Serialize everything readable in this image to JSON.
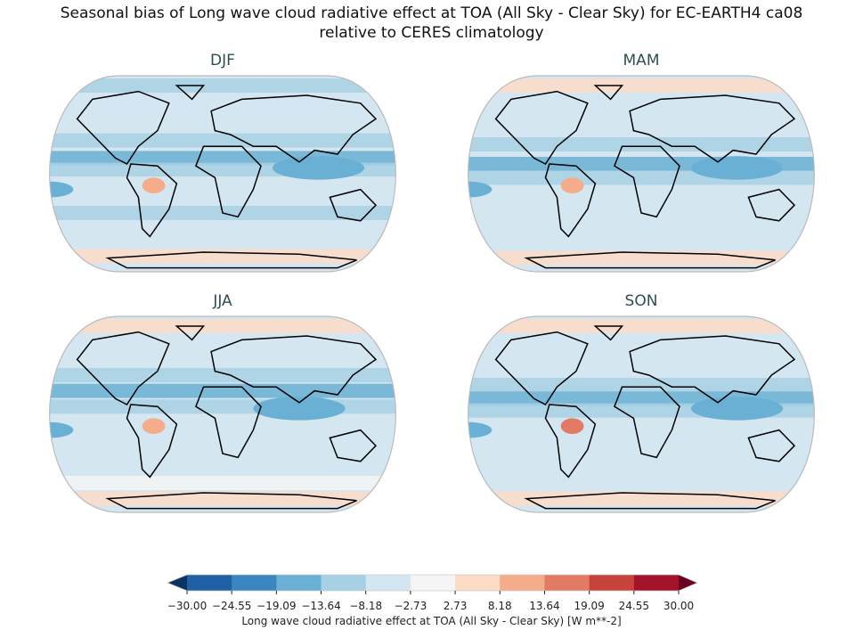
{
  "title_line1": "Seasonal bias of Long wave cloud radiative effect at TOA (All Sky - Clear Sky) for EC-EARTH4 ca08",
  "title_line2": "relative to CERES climatology",
  "panels": [
    {
      "label": "DJF"
    },
    {
      "label": "MAM"
    },
    {
      "label": "JJA"
    },
    {
      "label": "SON"
    }
  ],
  "colorbar": {
    "label": "Long wave cloud radiative effect at TOA (All Sky - Clear Sky) [W m**-2]",
    "ticks": [
      "−30.00",
      "−24.55",
      "−19.09",
      "−13.64",
      "−8.18",
      "−2.73",
      "2.73",
      "8.18",
      "13.64",
      "19.09",
      "24.55",
      "30.00"
    ],
    "colors": [
      "#2060a5",
      "#3a86c0",
      "#6aafd4",
      "#a7d0e4",
      "#d4e6f1",
      "#f5f5f5",
      "#fddbc7",
      "#f5ac8b",
      "#e27b64",
      "#c8423c",
      "#a3142a"
    ],
    "extend_low_color": "#0a3366",
    "extend_high_color": "#6b0020",
    "extend": "both"
  },
  "chart_data": {
    "type": "heatmap",
    "projection": "Robinson",
    "panels": [
      "DJF",
      "MAM",
      "JJA",
      "SON"
    ],
    "levels": [
      -30.0,
      -24.55,
      -19.09,
      -13.64,
      -8.18,
      -2.73,
      2.73,
      8.18,
      13.64,
      19.09,
      24.55,
      30.0
    ],
    "colormap": "RdBu_r"
  }
}
